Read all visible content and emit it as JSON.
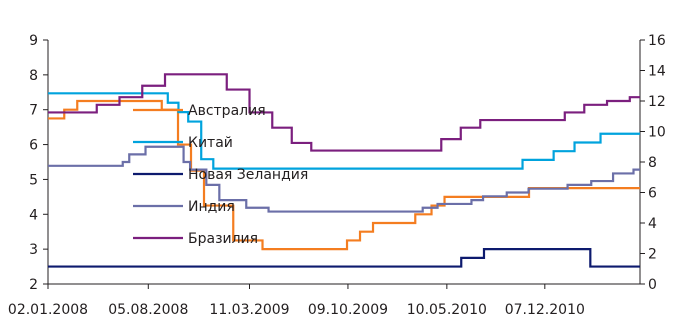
{
  "chart_data": {
    "type": "line",
    "title": "",
    "xlabel": "",
    "ylabel": "",
    "y_left": {
      "lim": [
        2,
        9
      ],
      "ticks": [
        2,
        3,
        4,
        5,
        6,
        7,
        8,
        9
      ]
    },
    "y_right": {
      "lim": [
        0,
        16
      ],
      "ticks": [
        0,
        2,
        4,
        6,
        8,
        10,
        12,
        14,
        16
      ]
    },
    "x_range": [
      "2008-01-02",
      "2011-06-30"
    ],
    "x_ticks": [
      {
        "date": "2008-01-02",
        "label": "02.01.2008"
      },
      {
        "date": "2008-08-05",
        "label": "05.08.2008"
      },
      {
        "date": "2009-03-11",
        "label": "11.03.2009"
      },
      {
        "date": "2009-10-09",
        "label": "09.10.2009"
      },
      {
        "date": "2010-05-10",
        "label": "10.05.2010"
      },
      {
        "date": "2010-12-07",
        "label": "07.12.2010"
      }
    ],
    "step_style": "step-after",
    "grid": false,
    "legend_position": "center",
    "series": [
      {
        "name": "Австралия",
        "color": "#f47d20",
        "axis": "left",
        "points": [
          [
            "2008-01-02",
            6.75
          ],
          [
            "2008-02-06",
            7.0
          ],
          [
            "2008-03-05",
            7.25
          ],
          [
            "2008-09-03",
            7.0
          ],
          [
            "2008-10-08",
            6.0
          ],
          [
            "2008-11-05",
            5.25
          ],
          [
            "2008-12-03",
            4.25
          ],
          [
            "2009-02-04",
            3.25
          ],
          [
            "2009-04-08",
            3.0
          ],
          [
            "2009-10-07",
            3.25
          ],
          [
            "2009-11-04",
            3.5
          ],
          [
            "2009-12-02",
            3.75
          ],
          [
            "2010-03-03",
            4.0
          ],
          [
            "2010-04-07",
            4.25
          ],
          [
            "2010-05-05",
            4.5
          ],
          [
            "2010-11-03",
            4.75
          ],
          [
            "2011-06-30",
            4.75
          ]
        ]
      },
      {
        "name": "Китай",
        "color": "#00a3dd",
        "axis": "left",
        "points": [
          [
            "2008-01-02",
            7.47
          ],
          [
            "2008-09-16",
            7.2
          ],
          [
            "2008-10-09",
            6.93
          ],
          [
            "2008-10-30",
            6.66
          ],
          [
            "2008-11-27",
            5.58
          ],
          [
            "2008-12-23",
            5.31
          ],
          [
            "2010-10-20",
            5.56
          ],
          [
            "2010-12-26",
            5.81
          ],
          [
            "2011-02-09",
            6.06
          ],
          [
            "2011-04-06",
            6.31
          ],
          [
            "2011-06-30",
            6.31
          ]
        ]
      },
      {
        "name": "Новая Зеландия",
        "color": "#0d1a6e",
        "axis": "left",
        "points": [
          [
            "2008-01-02",
            2.5
          ],
          [
            "2010-06-10",
            2.75
          ],
          [
            "2010-07-29",
            3.0
          ],
          [
            "2011-03-15",
            2.5
          ],
          [
            "2011-06-30",
            2.5
          ]
        ]
      },
      {
        "name": "Индия",
        "color": "#6b6fa8",
        "axis": "right",
        "points": [
          [
            "2008-01-02",
            7.75
          ],
          [
            "2008-06-11",
            8.0
          ],
          [
            "2008-06-25",
            8.5
          ],
          [
            "2008-07-30",
            9.0
          ],
          [
            "2008-10-20",
            8.0
          ],
          [
            "2008-11-03",
            7.5
          ],
          [
            "2008-12-08",
            6.5
          ],
          [
            "2009-01-05",
            5.5
          ],
          [
            "2009-03-04",
            5.0
          ],
          [
            "2009-04-21",
            4.75
          ],
          [
            "2010-03-19",
            5.0
          ],
          [
            "2010-04-20",
            5.25
          ],
          [
            "2010-07-02",
            5.5
          ],
          [
            "2010-07-27",
            5.75
          ],
          [
            "2010-09-16",
            6.0
          ],
          [
            "2010-11-02",
            6.25
          ],
          [
            "2011-01-25",
            6.5
          ],
          [
            "2011-03-17",
            6.75
          ],
          [
            "2011-05-03",
            7.25
          ],
          [
            "2011-06-16",
            7.5
          ],
          [
            "2011-06-30",
            7.5
          ]
        ]
      },
      {
        "name": "Бразилия",
        "color": "#7b1f7e",
        "axis": "right",
        "points": [
          [
            "2008-01-02",
            11.25
          ],
          [
            "2008-04-16",
            11.75
          ],
          [
            "2008-06-04",
            12.25
          ],
          [
            "2008-07-23",
            13.0
          ],
          [
            "2008-09-10",
            13.75
          ],
          [
            "2009-01-21",
            12.75
          ],
          [
            "2009-03-11",
            11.25
          ],
          [
            "2009-04-29",
            10.25
          ],
          [
            "2009-06-10",
            9.25
          ],
          [
            "2009-07-22",
            8.75
          ],
          [
            "2010-04-28",
            9.5
          ],
          [
            "2010-06-09",
            10.25
          ],
          [
            "2010-07-21",
            10.75
          ],
          [
            "2011-01-19",
            11.25
          ],
          [
            "2011-03-02",
            11.75
          ],
          [
            "2011-04-20",
            12.0
          ],
          [
            "2011-06-08",
            12.25
          ],
          [
            "2011-06-30",
            12.25
          ]
        ]
      }
    ]
  }
}
